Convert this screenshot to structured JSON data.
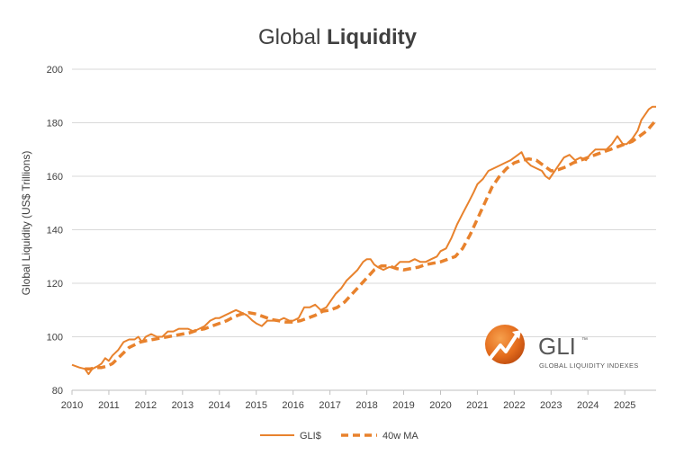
{
  "chart_data": {
    "type": "line",
    "title": "Global Liquidity",
    "title_parts": [
      "Global ",
      "Liquidity"
    ],
    "xlabel": "",
    "ylabel": "Global Liquidity (US$ Trillions)",
    "xlim": [
      2010,
      2025.85
    ],
    "ylim": [
      80,
      200
    ],
    "y_ticks": [
      80,
      100,
      120,
      140,
      160,
      180,
      200
    ],
    "x_ticks": [
      2010,
      2011,
      2012,
      2013,
      2014,
      2015,
      2016,
      2017,
      2018,
      2019,
      2020,
      2021,
      2022,
      2023,
      2024,
      2025
    ],
    "grid": true,
    "legend_position": "bottom",
    "colors": {
      "series": "#E8822D",
      "grid": "#D9D9D9",
      "text": "#404040"
    },
    "series": [
      {
        "name": "GLI$",
        "style": "solid",
        "x": [
          2010.0,
          2010.2,
          2010.35,
          2010.45,
          2010.55,
          2010.7,
          2010.8,
          2010.9,
          2011.0,
          2011.1,
          2011.25,
          2011.4,
          2011.55,
          2011.7,
          2011.8,
          2011.9,
          2012.0,
          2012.15,
          2012.3,
          2012.45,
          2012.6,
          2012.75,
          2012.9,
          2013.0,
          2013.15,
          2013.3,
          2013.45,
          2013.6,
          2013.75,
          2013.9,
          2014.0,
          2014.15,
          2014.3,
          2014.45,
          2014.6,
          2014.75,
          2014.9,
          2015.0,
          2015.15,
          2015.3,
          2015.45,
          2015.6,
          2015.75,
          2015.9,
          2016.0,
          2016.15,
          2016.3,
          2016.45,
          2016.6,
          2016.75,
          2016.9,
          2017.0,
          2017.15,
          2017.3,
          2017.45,
          2017.6,
          2017.75,
          2017.9,
          2018.0,
          2018.1,
          2018.2,
          2018.3,
          2018.45,
          2018.6,
          2018.75,
          2018.9,
          2019.0,
          2019.15,
          2019.3,
          2019.45,
          2019.6,
          2019.75,
          2019.9,
          2020.0,
          2020.15,
          2020.3,
          2020.45,
          2020.6,
          2020.75,
          2020.9,
          2021.0,
          2021.15,
          2021.3,
          2021.45,
          2021.6,
          2021.75,
          2021.9,
          2022.0,
          2022.1,
          2022.2,
          2022.3,
          2022.45,
          2022.6,
          2022.75,
          2022.85,
          2022.95,
          2023.05,
          2023.2,
          2023.35,
          2023.5,
          2023.65,
          2023.8,
          2023.95,
          2024.05,
          2024.2,
          2024.35,
          2024.5,
          2024.65,
          2024.8,
          2024.95,
          2025.05,
          2025.2,
          2025.35,
          2025.45,
          2025.55,
          2025.65,
          2025.75,
          2025.85
        ],
        "values": [
          89.5,
          88.5,
          88,
          86,
          88,
          89,
          90,
          92,
          91,
          93,
          95,
          98,
          99,
          99,
          100,
          98,
          100,
          101,
          100,
          100,
          102,
          102,
          103,
          103,
          103,
          102,
          103,
          104,
          106,
          107,
          107,
          108,
          109,
          110,
          109,
          108,
          106,
          105,
          104,
          106,
          106,
          106,
          107,
          106,
          106,
          107,
          111,
          111,
          112,
          110,
          111,
          113,
          116,
          118,
          121,
          123,
          125,
          128,
          129,
          129,
          127,
          126,
          125,
          126,
          126,
          128,
          128,
          128,
          129,
          128,
          128,
          129,
          130,
          132,
          133,
          137,
          142,
          146,
          150,
          154,
          157,
          159,
          162,
          163,
          164,
          165,
          166,
          167,
          168,
          169,
          166,
          164,
          163,
          162,
          160,
          159,
          161,
          164,
          167,
          168,
          166,
          167,
          166,
          168,
          170,
          170,
          170,
          172,
          175,
          172,
          172,
          174,
          177,
          181,
          183,
          185,
          186,
          186
        ]
      },
      {
        "name": "40w MA",
        "style": "dashed",
        "x": [
          2010.35,
          2010.5,
          2010.65,
          2010.8,
          2010.95,
          2011.1,
          2011.25,
          2011.4,
          2011.55,
          2011.7,
          2011.85,
          2012.0,
          2012.2,
          2012.4,
          2012.6,
          2012.8,
          2013.0,
          2013.2,
          2013.4,
          2013.6,
          2013.8,
          2014.0,
          2014.2,
          2014.4,
          2014.6,
          2014.8,
          2015.0,
          2015.2,
          2015.4,
          2015.6,
          2015.8,
          2016.0,
          2016.2,
          2016.4,
          2016.6,
          2016.8,
          2017.0,
          2017.2,
          2017.4,
          2017.6,
          2017.8,
          2018.0,
          2018.2,
          2018.4,
          2018.6,
          2018.8,
          2019.0,
          2019.2,
          2019.4,
          2019.6,
          2019.8,
          2020.0,
          2020.2,
          2020.4,
          2020.6,
          2020.8,
          2021.0,
          2021.2,
          2021.4,
          2021.6,
          2021.8,
          2022.0,
          2022.2,
          2022.4,
          2022.6,
          2022.8,
          2023.0,
          2023.2,
          2023.4,
          2023.6,
          2023.8,
          2024.0,
          2024.2,
          2024.4,
          2024.6,
          2024.8,
          2025.0,
          2025.2,
          2025.4,
          2025.6,
          2025.85
        ],
        "values": [
          88,
          88,
          88.5,
          88.5,
          89,
          90,
          92,
          94,
          96,
          97,
          98,
          98.5,
          99,
          99.5,
          100,
          100.5,
          101,
          101.5,
          102.5,
          103,
          104,
          105,
          106,
          107.5,
          108.5,
          109,
          108.5,
          107.5,
          106.5,
          106,
          105.5,
          105.5,
          106,
          107,
          108,
          109.5,
          110,
          111,
          113,
          116,
          119,
          122,
          125,
          126.5,
          126.5,
          125.5,
          125,
          125.5,
          126,
          127,
          127.5,
          128,
          129,
          130,
          133,
          138,
          144,
          150,
          156,
          160,
          163,
          165,
          166,
          166.5,
          166,
          164,
          162,
          162.5,
          163.5,
          165,
          166,
          167,
          168,
          169,
          170,
          171,
          172,
          173,
          175,
          177,
          181
        ]
      }
    ],
    "legend": [
      {
        "label": "GLI$",
        "style": "solid"
      },
      {
        "label": "40w MA",
        "style": "dashed"
      }
    ]
  },
  "logo": {
    "name": "GLI",
    "trademark": "™",
    "subtitle": "GLOBAL LIQUIDITY INDEXES",
    "icon": "gli-globe-arrow-icon"
  }
}
